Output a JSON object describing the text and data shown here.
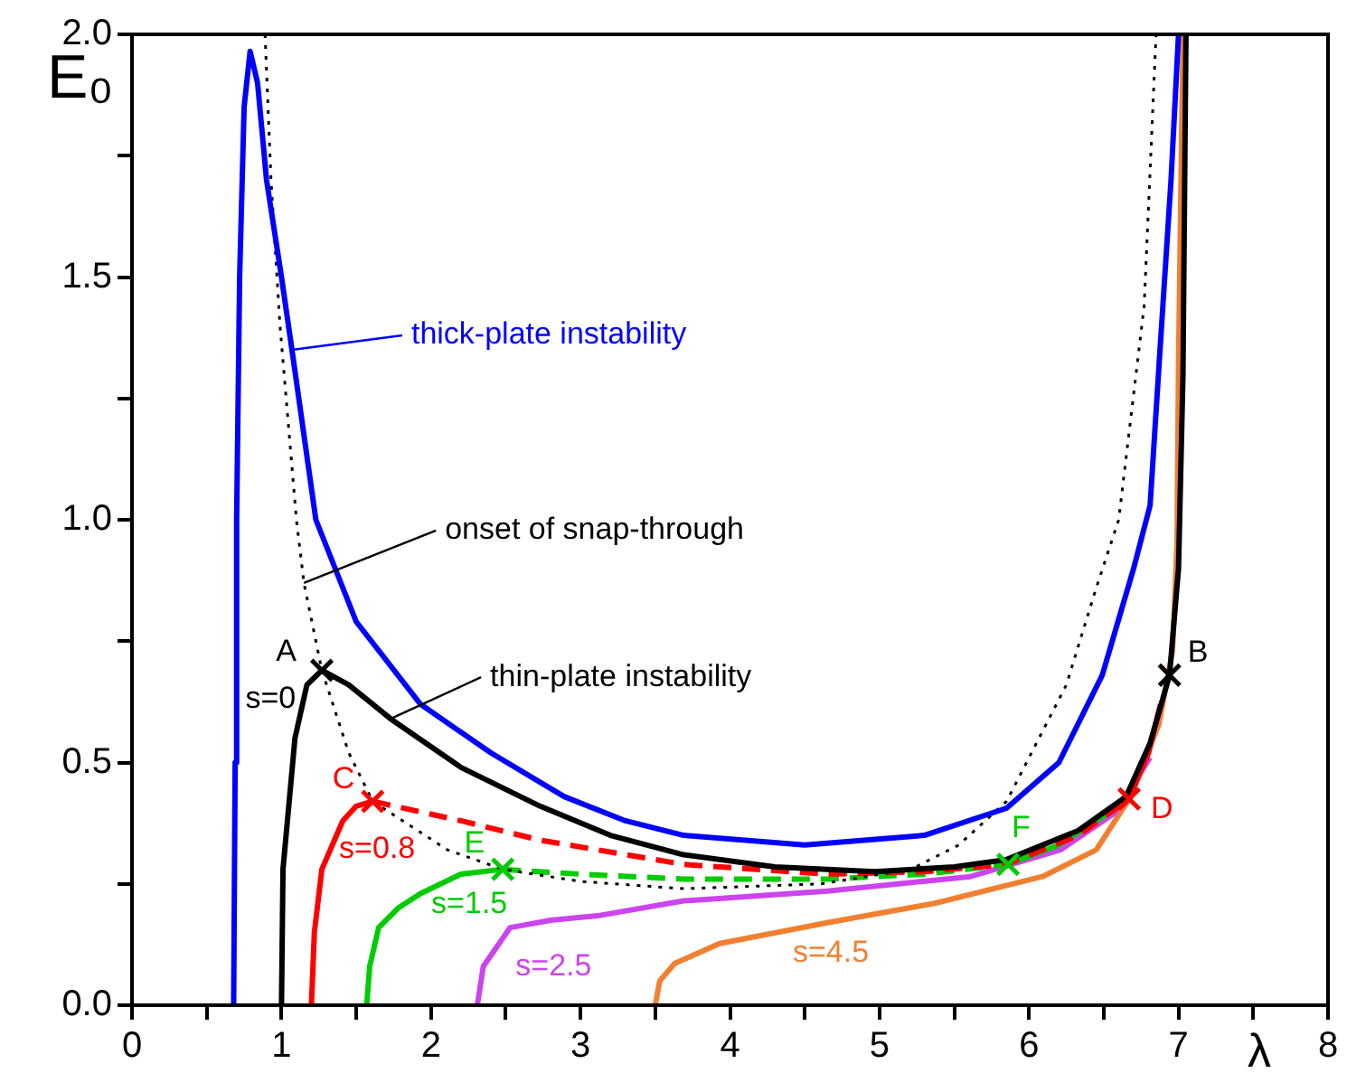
{
  "chart_data": {
    "type": "line",
    "xlabel": "λ",
    "ylabel": "E₀",
    "xlim": [
      0,
      8
    ],
    "ylim": [
      0,
      2.0
    ],
    "xticks": [
      0,
      {
        "value": 0.5,
        "label": null
      },
      1,
      {
        "value": 1.5,
        "label": null
      },
      2,
      {
        "value": 2.5,
        "label": null
      },
      3,
      {
        "value": 3.5,
        "label": null
      },
      4,
      {
        "value": 4.5,
        "label": null
      },
      5,
      {
        "value": 5.5,
        "label": null
      },
      6,
      {
        "value": 6.5,
        "label": null
      },
      7,
      {
        "value": 7.5,
        "label": null
      },
      8
    ],
    "yticks": [
      {
        "value": 0,
        "label": "0.0"
      },
      {
        "value": 0.25,
        "label": null
      },
      {
        "value": 0.5,
        "label": "0.5"
      },
      {
        "value": 0.75,
        "label": null
      },
      {
        "value": 1.0,
        "label": "1.0"
      },
      {
        "value": 1.25,
        "label": null
      },
      {
        "value": 1.5,
        "label": "1.5"
      },
      {
        "value": 1.75,
        "label": null
      },
      {
        "value": 2.0,
        "label": "2.0"
      }
    ],
    "grid": false,
    "legend": false,
    "series": [
      {
        "color": "#0000ff",
        "line_style": "solid",
        "x": [
          0.68,
          0.69,
          0.7,
          0.72,
          0.75,
          0.79,
          0.84,
          0.9,
          1.0,
          1.07,
          1.23,
          1.5,
          1.93,
          2.4,
          2.89,
          3.3,
          3.69,
          4.5,
          5.3,
          5.85,
          6.2,
          6.49,
          6.7,
          6.81,
          6.87,
          6.95,
          7.0
        ],
        "values": [
          0,
          0.5,
          1.0,
          1.5,
          1.85,
          1.965,
          1.9,
          1.7,
          1.5,
          1.35,
          1.0,
          0.79,
          0.62,
          0.52,
          0.43,
          0.38,
          0.35,
          0.33,
          0.35,
          0.406,
          0.5,
          0.68,
          0.9,
          1.03,
          1.32,
          1.7,
          2.0
        ]
      },
      {
        "color": "#000000",
        "line_style": "dotted",
        "x": [
          0.89,
          0.93,
          0.99,
          1.1,
          1.15,
          1.27,
          1.45,
          1.61,
          2.11,
          2.48,
          3.0,
          3.69,
          4.61,
          5.21,
          5.53,
          5.85,
          6.25,
          6.45,
          6.6,
          6.77,
          6.85
        ],
        "values": [
          2.0,
          1.7,
          1.4,
          1.0,
          0.87,
          0.69,
          0.52,
          0.42,
          0.32,
          0.28,
          0.255,
          0.24,
          0.25,
          0.28,
          0.33,
          0.42,
          0.66,
          0.86,
          1.0,
          1.44,
          2.0
        ]
      },
      {
        "color": "#000000",
        "line_style": "solid",
        "x": [
          1.0,
          1.01,
          1.09,
          1.17,
          1.27,
          1.45,
          1.73,
          2.2,
          2.73,
          3.2,
          3.69,
          4.3,
          4.97,
          5.5,
          5.85,
          6.33,
          6.65,
          6.81,
          6.94,
          7.0,
          7.03,
          7.05
        ],
        "values": [
          0,
          0.28,
          0.55,
          0.66,
          0.69,
          0.66,
          0.59,
          0.49,
          0.41,
          0.35,
          0.31,
          0.285,
          0.275,
          0.285,
          0.3,
          0.36,
          0.43,
          0.54,
          0.68,
          0.9,
          1.3,
          2.0
        ]
      },
      {
        "color": "#ff0000",
        "line_style": "solid",
        "x": [
          1.2,
          1.22,
          1.27,
          1.41,
          1.5,
          1.61
        ],
        "values": [
          0,
          0.15,
          0.28,
          0.38,
          0.41,
          0.42
        ]
      },
      {
        "color": "#ff0000",
        "line_style": "dashed",
        "x": [
          1.61,
          2.2,
          2.73,
          3.69,
          4.65,
          5.3,
          5.85,
          6.33,
          6.67
        ],
        "values": [
          0.42,
          0.38,
          0.34,
          0.29,
          0.27,
          0.275,
          0.29,
          0.35,
          0.425
        ]
      },
      {
        "color": "#ff0000",
        "line_style": "solid",
        "x": [
          6.67,
          6.8,
          6.88
        ],
        "values": [
          0.425,
          0.52,
          0.62
        ]
      },
      {
        "color": "#00cc00",
        "line_style": "solid",
        "x": [
          1.57,
          1.59,
          1.65,
          1.78,
          1.93,
          2.2,
          2.48
        ],
        "values": [
          0,
          0.08,
          0.16,
          0.2,
          0.23,
          0.27,
          0.28
        ]
      },
      {
        "color": "#00cc00",
        "line_style": "dashed",
        "x": [
          2.48,
          3.0,
          3.69,
          4.65,
          5.3,
          5.86
        ],
        "values": [
          0.28,
          0.27,
          0.26,
          0.26,
          0.27,
          0.29
        ]
      },
      {
        "color": "#00cc00",
        "line_style": "solid",
        "x": [
          5.86,
          6.2,
          6.5,
          6.67
        ],
        "values": [
          0.29,
          0.33,
          0.39,
          0.43
        ]
      },
      {
        "color": "#cc44ee",
        "line_style": "solid",
        "x": [
          2.31,
          2.35,
          2.53,
          2.8,
          3.13,
          3.69,
          4.65,
          5.61,
          6.21,
          6.57,
          6.81
        ],
        "values": [
          0,
          0.08,
          0.16,
          0.175,
          0.185,
          0.215,
          0.235,
          0.265,
          0.32,
          0.395,
          0.51
        ]
      },
      {
        "color": "#f08030",
        "line_style": "solid",
        "x": [
          3.5,
          3.53,
          3.63,
          3.93,
          4.65,
          5.37,
          6.09,
          6.45,
          6.67,
          6.87,
          6.96,
          6.99,
          7.0,
          7.03
        ],
        "values": [
          0,
          0.05,
          0.086,
          0.127,
          0.17,
          0.21,
          0.265,
          0.32,
          0.425,
          0.58,
          0.73,
          0.95,
          1.32,
          2.0
        ]
      },
      {
        "type": "scatter",
        "color": "#000000",
        "marker": "cross",
        "x": [
          1.27,
          6.94
        ],
        "values": [
          0.69,
          0.68
        ]
      },
      {
        "type": "scatter",
        "color": "#ff0000",
        "marker": "cross",
        "x": [
          1.61,
          6.67
        ],
        "values": [
          0.42,
          0.425
        ]
      },
      {
        "type": "scatter",
        "color": "#00cc00",
        "marker": "cross",
        "x": [
          2.48,
          5.86
        ],
        "values": [
          0.28,
          0.29
        ]
      }
    ],
    "annotations": [
      {
        "text": "thick-plate instability",
        "x": 1.07,
        "y": 1.35
      },
      {
        "text": "onset of snap-through",
        "x": 1.15,
        "y": 0.87
      },
      {
        "text": "thin-plate instability",
        "x": 1.73,
        "y": 0.59
      },
      {
        "text": "A",
        "x": 1.27,
        "y": 0.69
      },
      {
        "text": "B",
        "x": 6.94,
        "y": 0.68
      },
      {
        "text": "C",
        "x": 1.61,
        "y": 0.42
      },
      {
        "text": "D",
        "x": 6.67,
        "y": 0.425
      },
      {
        "text": "E",
        "x": 2.48,
        "y": 0.28
      },
      {
        "text": "F",
        "x": 5.86,
        "y": 0.29
      },
      {
        "text": "s=0",
        "x": 1.12,
        "y": 0.63
      },
      {
        "text": "s=0.8",
        "x": 1.41,
        "y": 0.38
      },
      {
        "text": "s=1.5",
        "x": 1.93,
        "y": 0.23
      },
      {
        "text": "s=2.5",
        "x": 2.53,
        "y": 0.16
      },
      {
        "text": "s=4.5",
        "x": 4.65,
        "y": 0.17
      }
    ]
  }
}
